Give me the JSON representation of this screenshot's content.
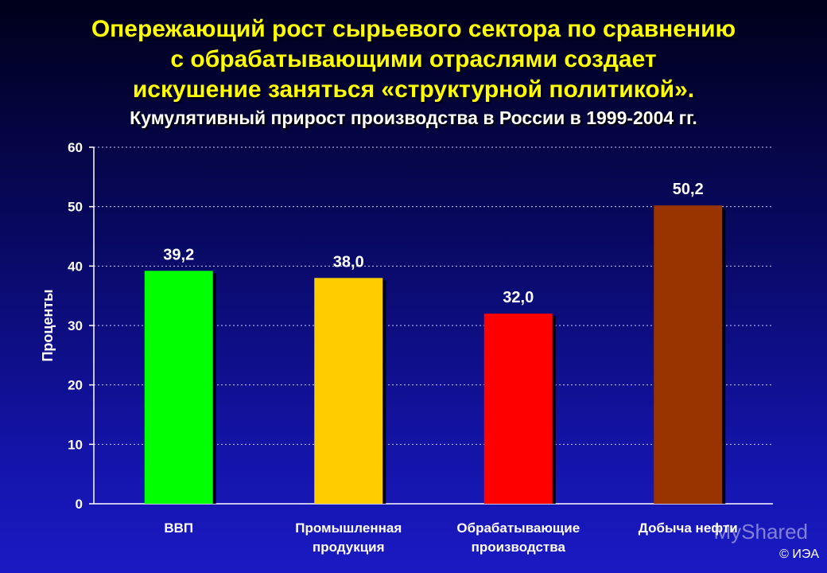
{
  "title_lines": [
    "Опережающий рост сырьевого сектора по сравнению",
    "с обрабатывающими отраслями создает",
    "искушение заняться «структурной политикой»."
  ],
  "subtitle": "Кумулятивный прирост производства в России в 1999-2004 гг.",
  "watermark": "MyShared",
  "copyright": "© ИЭА",
  "chart_data": {
    "type": "bar",
    "title": "Кумулятивный прирост производства в России в 1999-2004 гг.",
    "ylabel": "Проценты",
    "xlabel": "",
    "ylim": [
      0,
      60
    ],
    "yticks": [
      0,
      10,
      20,
      30,
      40,
      50,
      60
    ],
    "grid": true,
    "categories": [
      [
        "ВВП"
      ],
      [
        "Промышленная",
        "продукция"
      ],
      [
        "Обрабатывающие",
        "производства"
      ],
      [
        "Добыча нефти"
      ]
    ],
    "values": [
      39.2,
      38.0,
      32.0,
      50.2
    ],
    "value_labels": [
      "39,2",
      "38,0",
      "32,0",
      "50,2"
    ],
    "colors": [
      "#00ff00",
      "#ffcc00",
      "#ff0000",
      "#993300"
    ]
  }
}
